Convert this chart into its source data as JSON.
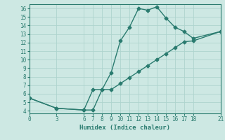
{
  "xlabel": "Humidex (Indice chaleur)",
  "line1_x": [
    0,
    3,
    6,
    7,
    8,
    9,
    10,
    11,
    12,
    13,
    14,
    15,
    16,
    17,
    18,
    21
  ],
  "line1_y": [
    5.5,
    4.3,
    4.1,
    4.1,
    6.5,
    8.5,
    12.2,
    13.8,
    16.0,
    15.8,
    16.2,
    14.9,
    13.8,
    13.3,
    12.5,
    13.3
  ],
  "line2_x": [
    0,
    3,
    6,
    7,
    8,
    9,
    10,
    11,
    12,
    13,
    14,
    15,
    16,
    17,
    18,
    21
  ],
  "line2_y": [
    5.5,
    4.3,
    4.1,
    6.5,
    6.5,
    6.5,
    7.2,
    7.9,
    8.6,
    9.3,
    10.0,
    10.7,
    11.4,
    12.1,
    12.2,
    13.3
  ],
  "line_color": "#2a7b6f",
  "bg_color": "#cde8e3",
  "grid_color": "#aed4ce",
  "xlim": [
    0,
    21
  ],
  "ylim": [
    4,
    16.5
  ],
  "xticks": [
    0,
    3,
    6,
    7,
    8,
    9,
    10,
    11,
    12,
    13,
    14,
    15,
    16,
    17,
    18,
    21
  ],
  "yticks": [
    4,
    5,
    6,
    7,
    8,
    9,
    10,
    11,
    12,
    13,
    14,
    15,
    16
  ],
  "marker": "D",
  "markersize": 2.5,
  "linewidth": 1.0,
  "tick_fontsize": 5.5,
  "label_fontsize": 6.5
}
